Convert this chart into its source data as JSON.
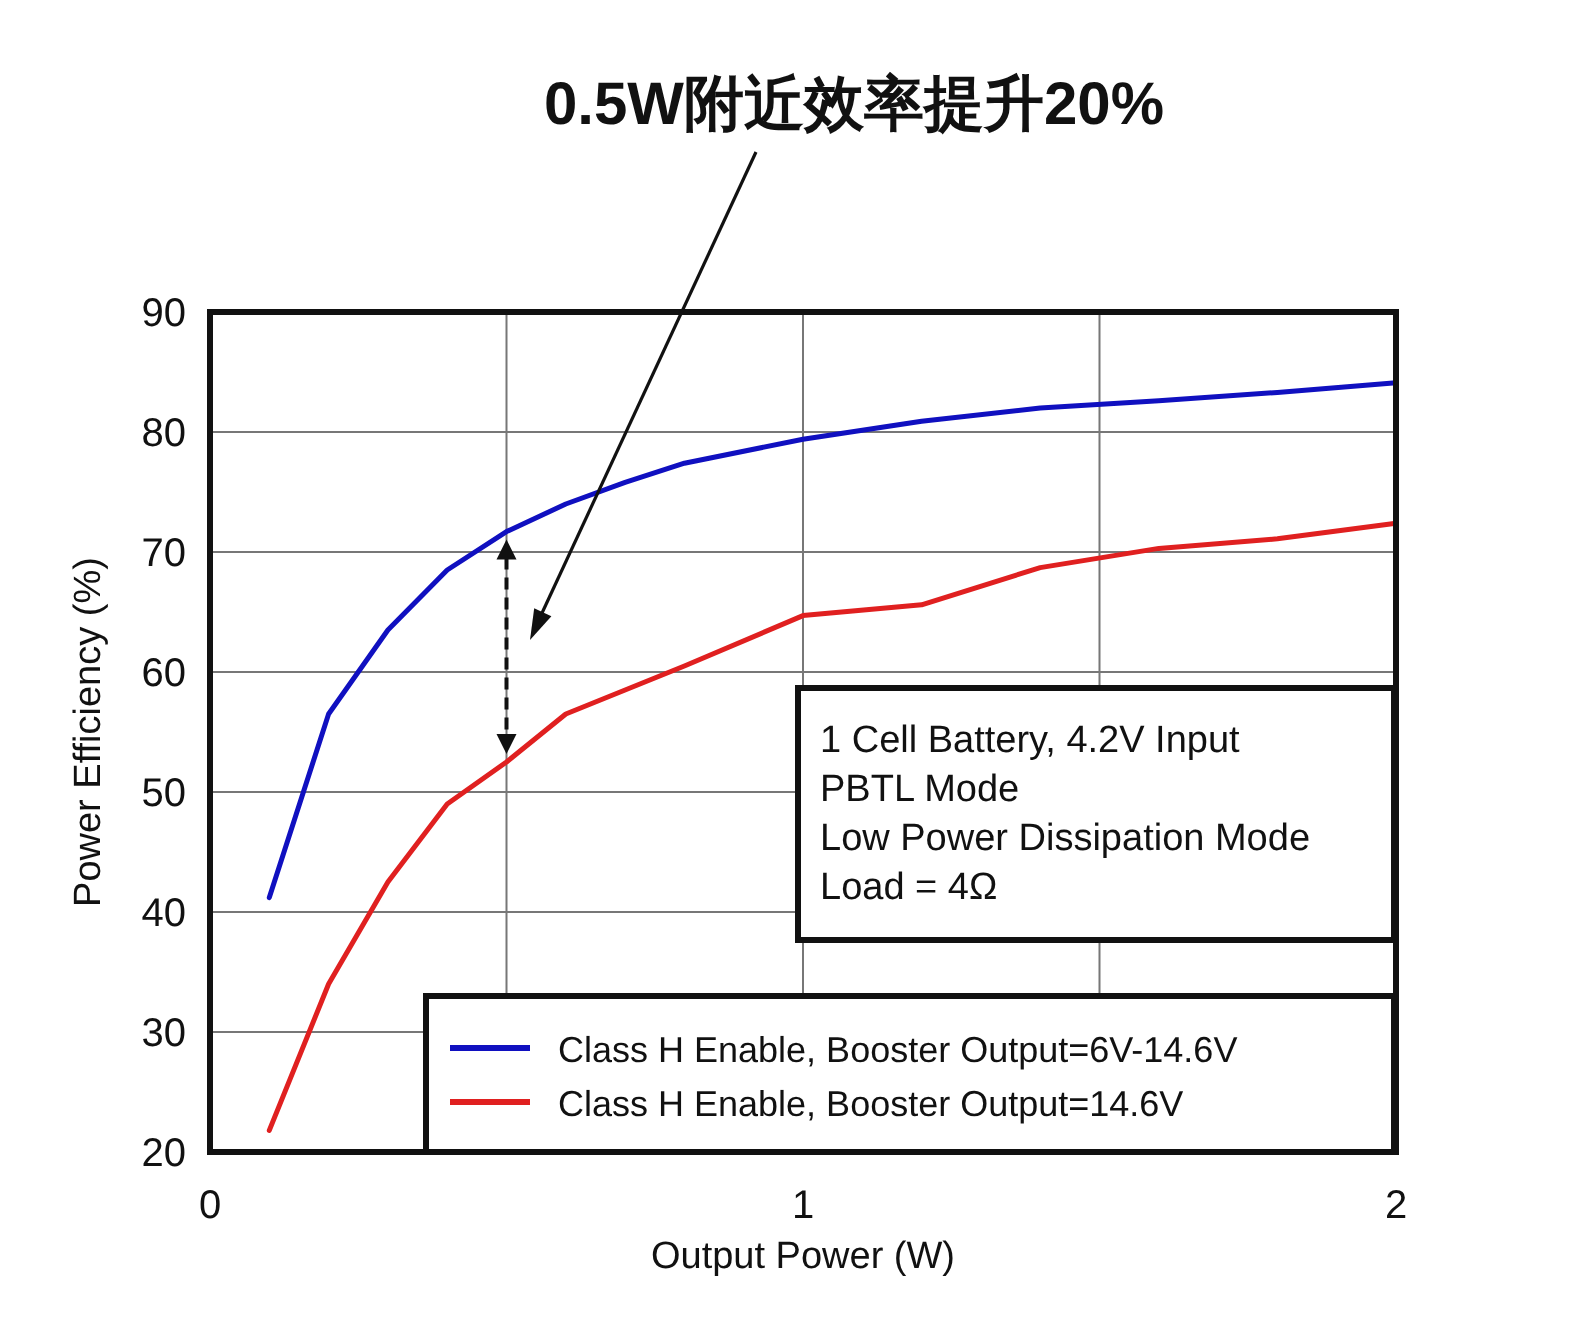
{
  "chart_data": {
    "type": "line",
    "title": "0.5W附近效率提升20%",
    "xlabel": "Output Power (W)",
    "ylabel": "Power Efficiency (%)",
    "x": [
      0.1,
      0.2,
      0.3,
      0.4,
      0.5,
      0.6,
      0.7,
      0.8,
      1,
      1.2,
      1.4,
      1.6,
      1.8,
      2
    ],
    "series": [
      {
        "name": "Class H Enable, Booster Output=6V-14.6V",
        "color": "#1010c0",
        "values": [
          41.2,
          56.5,
          63.5,
          68.5,
          71.7,
          74,
          75.8,
          77.4,
          79.4,
          80.9,
          82,
          82.6,
          83.3,
          84.1
        ]
      },
      {
        "name": "Class H Enable, Booster Output=14.6V",
        "color": "#e02020",
        "values": [
          21.8,
          34,
          42.5,
          49,
          52.5,
          56.5,
          58.5,
          60.5,
          64.7,
          65.6,
          68.7,
          70.3,
          71.1,
          72.4
        ]
      }
    ],
    "xlim": [
      0,
      2
    ],
    "ylim": [
      20,
      90
    ],
    "xticks": [
      0,
      {
        "value": 0.5,
        "label": null
      },
      1,
      {
        "value": 1.5,
        "label": null
      },
      2
    ],
    "yticks": [
      20,
      30,
      40,
      50,
      60,
      70,
      80,
      90
    ],
    "grid": true,
    "legend": "bottom right",
    "marker": "none",
    "line_style": "solid",
    "annotations": [
      "1 Cell Battery, 4.2V Input",
      "PBTL Mode",
      "Low Power Dissipation Mode",
      "Load = 4Ω"
    ]
  }
}
